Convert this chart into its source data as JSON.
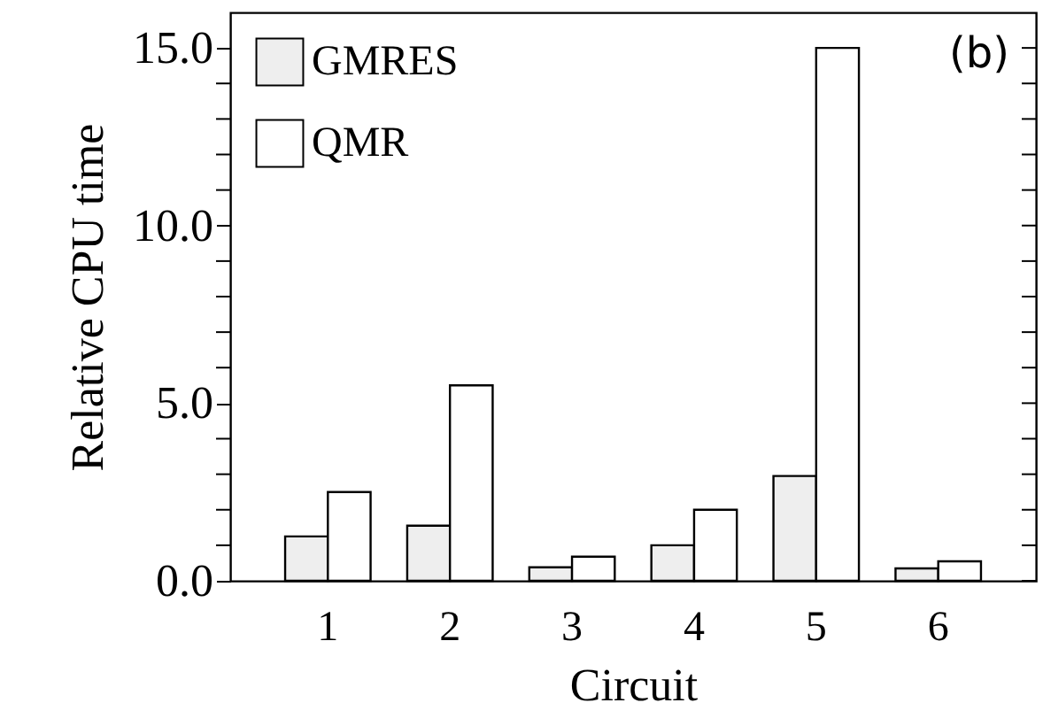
{
  "chart_data": {
    "type": "bar",
    "xlabel": "Circuit",
    "ylabel": "Relative CPU time",
    "categories": [
      "1",
      "2",
      "3",
      "4",
      "5",
      "6"
    ],
    "series": [
      {
        "name": "GMRES",
        "color": "#eeeeee",
        "values": [
          1.25,
          1.55,
          0.38,
          1.0,
          2.95,
          0.35
        ]
      },
      {
        "name": "QMR",
        "color": "#ffffff",
        "values": [
          2.5,
          5.5,
          0.68,
          2.0,
          15.0,
          0.55
        ]
      }
    ],
    "ylim": [
      0,
      16
    ],
    "yticks": [
      {
        "value": 0,
        "label": "0.0"
      },
      {
        "value": 1,
        "label": null
      },
      {
        "value": 2,
        "label": null
      },
      {
        "value": 3,
        "label": null
      },
      {
        "value": 4,
        "label": null
      },
      {
        "value": 5,
        "label": "5.0"
      },
      {
        "value": 6,
        "label": null
      },
      {
        "value": 7,
        "label": null
      },
      {
        "value": 8,
        "label": null
      },
      {
        "value": 9,
        "label": null
      },
      {
        "value": 10,
        "label": "10.0"
      },
      {
        "value": 11,
        "label": null
      },
      {
        "value": 12,
        "label": null
      },
      {
        "value": 13,
        "label": null
      },
      {
        "value": 14,
        "label": null
      },
      {
        "value": 15,
        "label": "15.0"
      }
    ],
    "annotations": [
      "(b)"
    ],
    "legend": "top left",
    "grid": false
  }
}
